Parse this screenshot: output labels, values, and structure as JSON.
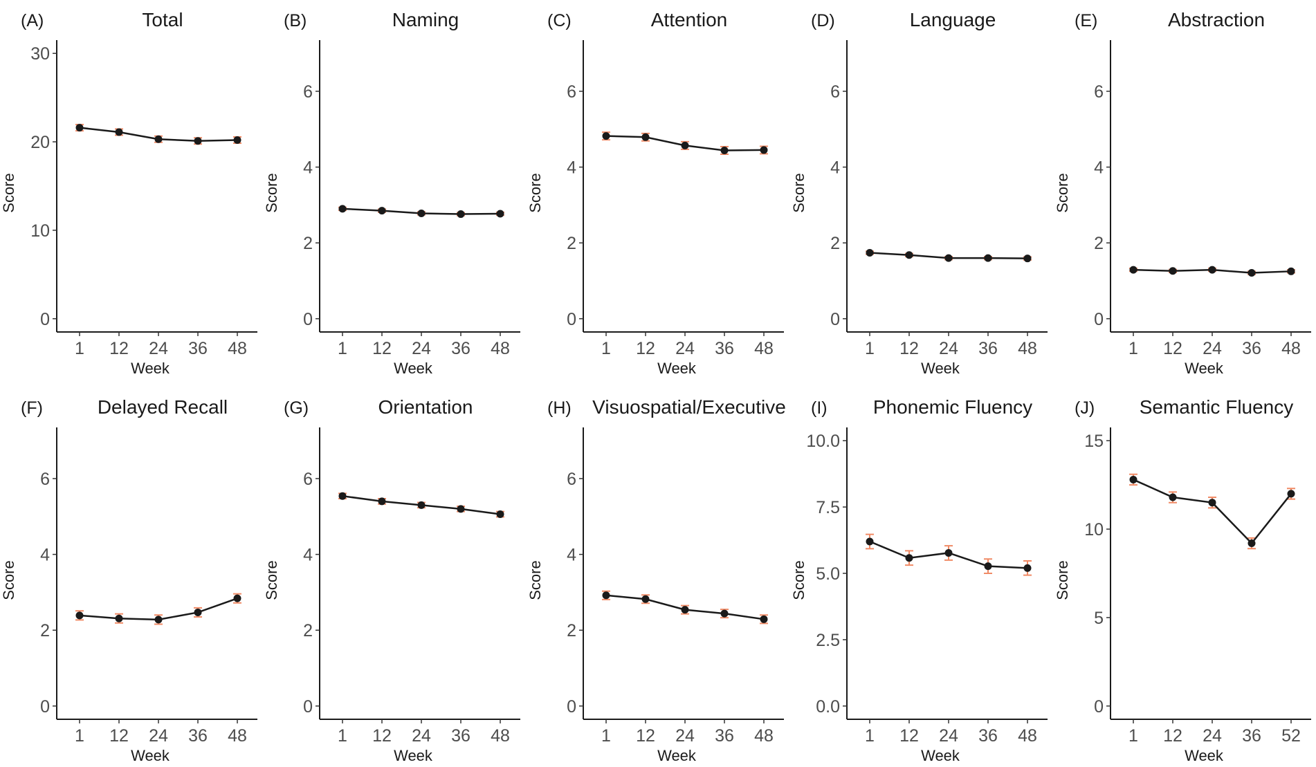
{
  "colors": {
    "line": "#1a1a1a",
    "point": "#1a1a1a",
    "error_bar": "#f08a65",
    "axis_text": "#4d4d4d"
  },
  "chart_data": [
    {
      "type": "line",
      "letter": "(A)",
      "title": "Total",
      "xlabel": "Week",
      "ylabel": "Score",
      "categories": [
        "1",
        "12",
        "24",
        "36",
        "48"
      ],
      "values": [
        21.6,
        21.1,
        20.3,
        20.1,
        20.2
      ],
      "errors": [
        0.35,
        0.35,
        0.35,
        0.35,
        0.35
      ],
      "yticks": [
        0,
        10,
        20,
        30
      ],
      "ytick_labels": [
        "0",
        "10",
        "20",
        "30"
      ],
      "ylim": [
        -1.5,
        31.5
      ]
    },
    {
      "type": "line",
      "letter": "(B)",
      "title": "Naming",
      "xlabel": "Week",
      "ylabel": "Score",
      "categories": [
        "1",
        "12",
        "24",
        "36",
        "48"
      ],
      "values": [
        2.9,
        2.85,
        2.78,
        2.76,
        2.77
      ],
      "errors": [
        0.04,
        0.04,
        0.04,
        0.04,
        0.04
      ],
      "yticks": [
        0,
        2,
        4,
        6
      ],
      "ytick_labels": [
        "0",
        "2",
        "4",
        "6"
      ],
      "ylim": [
        -0.35,
        7.35
      ]
    },
    {
      "type": "line",
      "letter": "(C)",
      "title": "Attention",
      "xlabel": "Week",
      "ylabel": "Score",
      "categories": [
        "1",
        "12",
        "24",
        "36",
        "48"
      ],
      "values": [
        4.82,
        4.79,
        4.57,
        4.44,
        4.45
      ],
      "errors": [
        0.1,
        0.1,
        0.1,
        0.1,
        0.1
      ],
      "yticks": [
        0,
        2,
        4,
        6
      ],
      "ytick_labels": [
        "0",
        "2",
        "4",
        "6"
      ],
      "ylim": [
        -0.35,
        7.35
      ]
    },
    {
      "type": "line",
      "letter": "(D)",
      "title": "Language",
      "xlabel": "Week",
      "ylabel": "Score",
      "categories": [
        "1",
        "12",
        "24",
        "36",
        "48"
      ],
      "values": [
        1.74,
        1.68,
        1.6,
        1.6,
        1.59
      ],
      "errors": [
        0.04,
        0.04,
        0.04,
        0.04,
        0.04
      ],
      "yticks": [
        0,
        2,
        4,
        6
      ],
      "ytick_labels": [
        "0",
        "2",
        "4",
        "6"
      ],
      "ylim": [
        -0.35,
        7.35
      ]
    },
    {
      "type": "line",
      "letter": "(E)",
      "title": "Abstraction",
      "xlabel": "Week",
      "ylabel": "Score",
      "categories": [
        "1",
        "12",
        "24",
        "36",
        "48"
      ],
      "values": [
        1.29,
        1.26,
        1.29,
        1.21,
        1.25
      ],
      "errors": [
        0.04,
        0.04,
        0.04,
        0.04,
        0.04
      ],
      "yticks": [
        0,
        2,
        4,
        6
      ],
      "ytick_labels": [
        "0",
        "2",
        "4",
        "6"
      ],
      "ylim": [
        -0.35,
        7.35
      ]
    },
    {
      "type": "line",
      "letter": "(F)",
      "title": "Delayed Recall",
      "xlabel": "Week",
      "ylabel": "Score",
      "categories": [
        "1",
        "12",
        "24",
        "36",
        "48"
      ],
      "values": [
        2.39,
        2.31,
        2.28,
        2.47,
        2.84
      ],
      "errors": [
        0.12,
        0.12,
        0.12,
        0.12,
        0.12
      ],
      "yticks": [
        0,
        2,
        4,
        6
      ],
      "ytick_labels": [
        "0",
        "2",
        "4",
        "6"
      ],
      "ylim": [
        -0.35,
        7.35
      ]
    },
    {
      "type": "line",
      "letter": "(G)",
      "title": "Orientation",
      "xlabel": "Week",
      "ylabel": "Score",
      "categories": [
        "1",
        "12",
        "24",
        "36",
        "48"
      ],
      "values": [
        5.54,
        5.4,
        5.3,
        5.2,
        5.06
      ],
      "errors": [
        0.07,
        0.07,
        0.07,
        0.07,
        0.07
      ],
      "yticks": [
        0,
        2,
        4,
        6
      ],
      "ytick_labels": [
        "0",
        "2",
        "4",
        "6"
      ],
      "ylim": [
        -0.35,
        7.35
      ]
    },
    {
      "type": "line",
      "letter": "(H)",
      "title": "Visuospatial/Executive",
      "xlabel": "Week",
      "ylabel": "Score",
      "categories": [
        "1",
        "12",
        "24",
        "36",
        "48"
      ],
      "values": [
        2.92,
        2.82,
        2.54,
        2.44,
        2.29
      ],
      "errors": [
        0.11,
        0.11,
        0.11,
        0.11,
        0.11
      ],
      "yticks": [
        0,
        2,
        4,
        6
      ],
      "ytick_labels": [
        "0",
        "2",
        "4",
        "6"
      ],
      "ylim": [
        -0.35,
        7.35
      ]
    },
    {
      "type": "line",
      "letter": "(I)",
      "title": "Phonemic Fluency",
      "xlabel": "Week",
      "ylabel": "Score",
      "categories": [
        "1",
        "12",
        "24",
        "36",
        "48"
      ],
      "values": [
        6.2,
        5.58,
        5.77,
        5.27,
        5.2
      ],
      "errors": [
        0.27,
        0.27,
        0.27,
        0.27,
        0.27
      ],
      "yticks": [
        0,
        2.5,
        5,
        7.5,
        10
      ],
      "ytick_labels": [
        "0.0",
        "2.5",
        "5.0",
        "7.5",
        "10.0"
      ],
      "ylim": [
        -0.5,
        10.5
      ]
    },
    {
      "type": "line",
      "letter": "(J)",
      "title": "Semantic Fluency",
      "xlabel": "Week",
      "ylabel": "Score",
      "categories": [
        "1",
        "12",
        "24",
        "36",
        "52"
      ],
      "values": [
        12.8,
        11.8,
        11.5,
        9.2,
        12.0
      ],
      "errors": [
        0.3,
        0.3,
        0.3,
        0.3,
        0.3
      ],
      "yticks": [
        0,
        5,
        10,
        15
      ],
      "ytick_labels": [
        "0",
        "5",
        "10",
        "15"
      ],
      "ylim": [
        -0.75,
        15.75
      ]
    }
  ]
}
